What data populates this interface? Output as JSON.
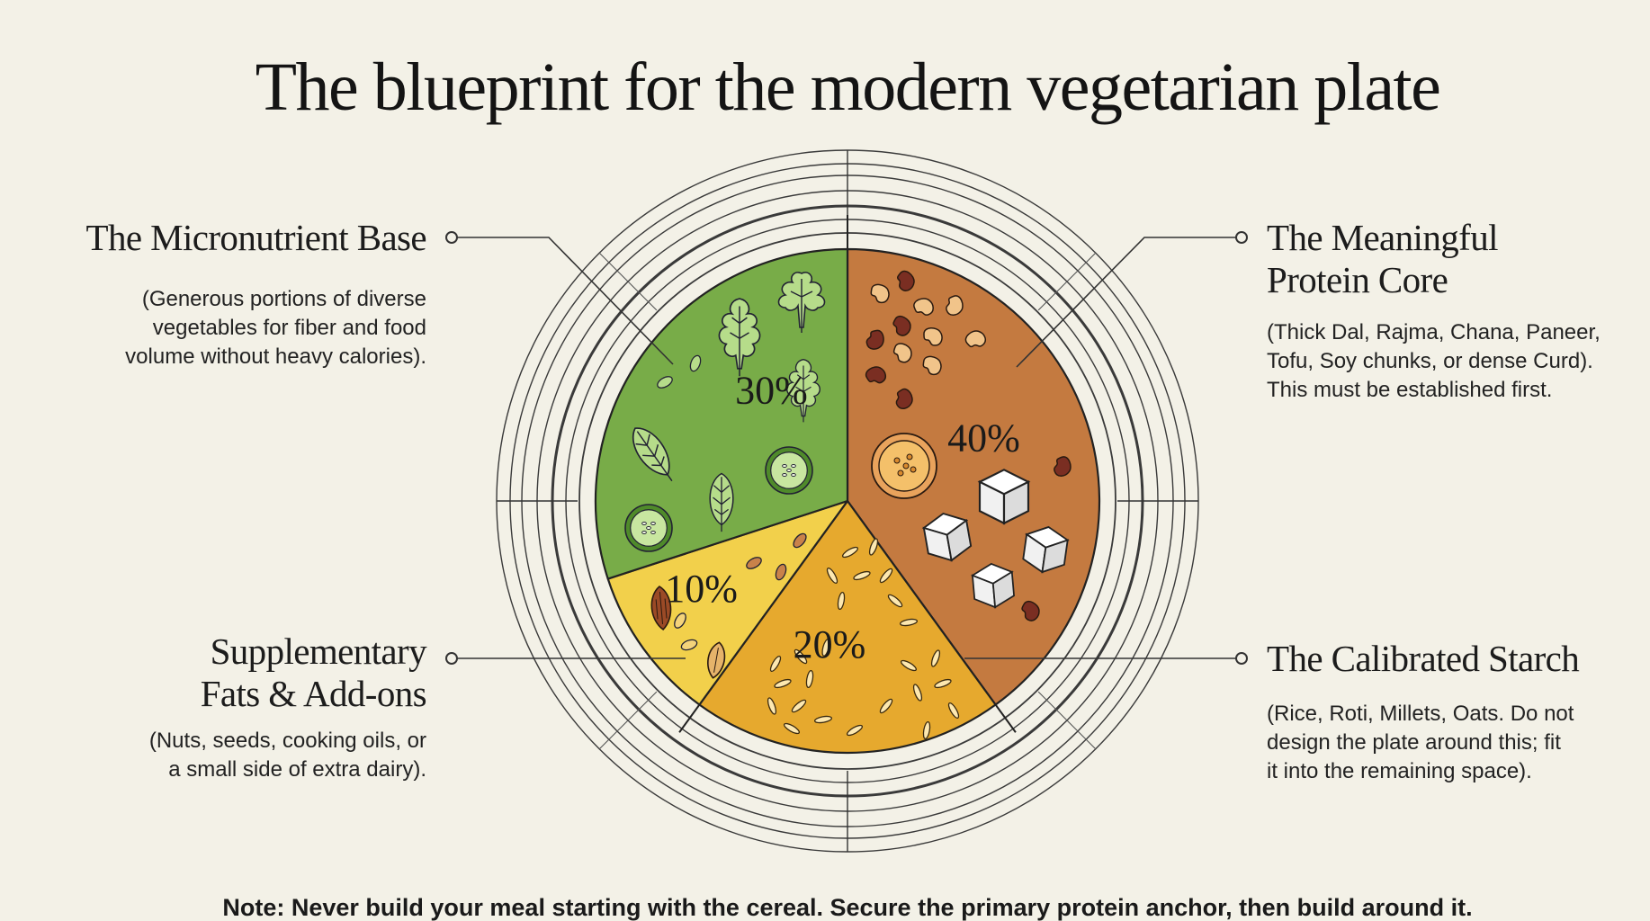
{
  "title": "The blueprint for the modern vegetarian plate",
  "note": "Note: Never build your meal starting with the cereal. Secure the primary protein anchor, then build around it.",
  "colors": {
    "background": "#f3f1e7",
    "vegetables": "#78ac48",
    "protein": "#c47a40",
    "starch": "#e6a92e",
    "fats": "#f2d04b"
  },
  "chart_data": {
    "type": "pie",
    "title": "The blueprint for the modern vegetarian plate",
    "slices": [
      {
        "key": "micronutrient",
        "label": "The Micronutrient Base",
        "value": 30,
        "value_label": "30%",
        "description": "(Generous portions of diverse vegetables for fiber and food volume without heavy calories).",
        "color": "#78ac48",
        "icons": [
          "lettuce-icon",
          "cilantro-icon",
          "spinach-icon",
          "basil-icon",
          "leaf-icon",
          "cucumber-slice-icon",
          "seed-icon"
        ]
      },
      {
        "key": "protein",
        "label": "The Meaningful Protein Core",
        "value": 40,
        "value_label": "40%",
        "description": "(Thick Dal, Rajma, Chana, Paneer, Tofu, Soy chunks, or dense Curd). This must be established first.",
        "color": "#c47a40",
        "icons": [
          "bean-icon",
          "dal-bowl-icon",
          "paneer-cube-icon"
        ]
      },
      {
        "key": "starch",
        "label": "The Calibrated Starch",
        "value": 20,
        "value_label": "20%",
        "description": "(Rice, Roti, Millets, Oats. Do not design the plate around this; fit it into the remaining space).",
        "color": "#e6a92e",
        "icons": [
          "rice-grain-icon"
        ]
      },
      {
        "key": "fats",
        "label": "Supplementary Fats & Add-ons",
        "value": 10,
        "value_label": "10%",
        "description": "(Nuts, seeds, cooking oils, or a small side of extra dairy).",
        "color": "#f2d04b",
        "icons": [
          "almond-icon",
          "seed-icon"
        ]
      }
    ]
  },
  "callouts": {
    "micronutrient": {
      "heading_lines": [
        "The Micronutrient Base"
      ],
      "desc_lines": [
        "(Generous portions of diverse",
        "vegetables for fiber and food",
        "volume without heavy calories)."
      ]
    },
    "protein": {
      "heading_lines": [
        "The Meaningful",
        "Protein Core"
      ],
      "desc_lines": [
        "(Thick Dal, Rajma, Chana, Paneer,",
        "Tofu, Soy chunks, or dense Curd).",
        "This must be established first."
      ]
    },
    "fats": {
      "heading_lines": [
        "Supplementary",
        "Fats & Add-ons"
      ],
      "desc_lines": [
        "(Nuts, seeds, cooking oils, or",
        "a small side of extra dairy)."
      ]
    },
    "starch": {
      "heading_lines": [
        "The Calibrated Starch"
      ],
      "desc_lines": [
        "(Rice, Roti, Millets, Oats. Do not",
        "design the plate around this; fit",
        "it into the remaining space)."
      ]
    }
  }
}
